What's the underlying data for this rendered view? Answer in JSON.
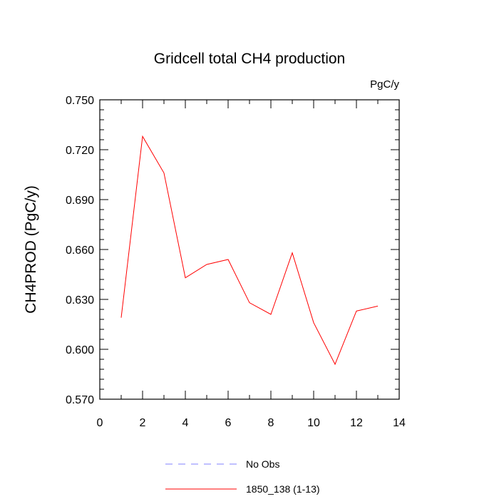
{
  "chart_data": {
    "type": "line",
    "title": "Gridcell total CH4 production",
    "units": "PgC/y",
    "ylabel": "CH4PROD  (PgC/y)",
    "xlabel": "",
    "xlim": [
      0,
      14
    ],
    "ylim": [
      0.57,
      0.75
    ],
    "x_ticks": [
      0,
      2,
      4,
      6,
      8,
      10,
      12,
      14
    ],
    "x_tick_labels": [
      "0",
      "2",
      "4",
      "6",
      "8",
      "10",
      "12",
      "14"
    ],
    "y_ticks": [
      0.57,
      0.6,
      0.63,
      0.66,
      0.69,
      0.72,
      0.75
    ],
    "y_tick_labels": [
      "0.570",
      "0.600",
      "0.630",
      "0.660",
      "0.690",
      "0.720",
      "0.750"
    ],
    "grid": false,
    "legend_position": "bottom",
    "series": [
      {
        "name": "No Obs",
        "color": "#8080ff",
        "dashed": true,
        "x": [],
        "values": []
      },
      {
        "name": "1850_138 (1-13)",
        "color": "#ff0000",
        "dashed": false,
        "x": [
          1,
          2,
          3,
          4,
          5,
          6,
          7,
          8,
          9,
          10,
          11,
          12,
          13
        ],
        "values": [
          0.619,
          0.728,
          0.706,
          0.643,
          0.651,
          0.654,
          0.628,
          0.621,
          0.658,
          0.616,
          0.591,
          0.623,
          0.626
        ]
      }
    ]
  }
}
